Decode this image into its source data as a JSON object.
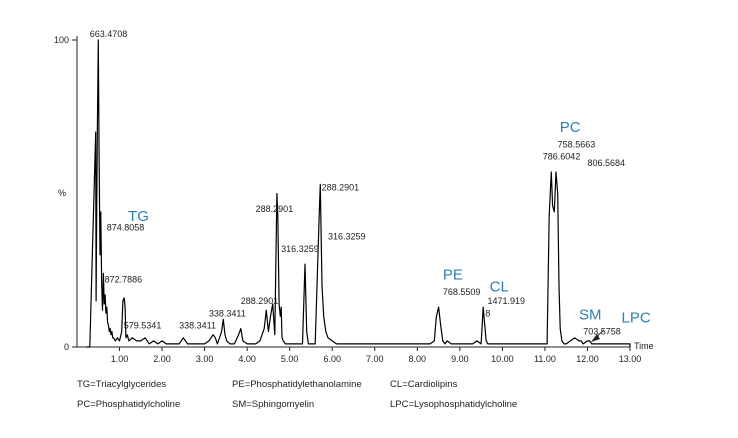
{
  "chart_data": {
    "type": "line",
    "xlabel": "Time",
    "ylabel": "%",
    "xlim": [
      0,
      13.0
    ],
    "ylim": [
      0,
      100
    ],
    "x_ticks": [
      "1.00",
      "2.00",
      "3.00",
      "4.00",
      "5.00",
      "6.00",
      "7.00",
      "8.00",
      "9.00",
      "10.00",
      "11.00",
      "12.00",
      "13.00"
    ],
    "y_ticks": [
      "0",
      "100"
    ],
    "series": [
      {
        "x": [
          0.3,
          0.44,
          0.45,
          0.46,
          0.48,
          0.5,
          0.52,
          0.54,
          0.56,
          0.58,
          0.6,
          0.62,
          0.64,
          0.66,
          0.68,
          0.7,
          0.72,
          0.74,
          0.76,
          0.78,
          0.8,
          0.82,
          0.84,
          0.86,
          0.9,
          0.95,
          1.0,
          1.05,
          1.08,
          1.11,
          1.13,
          1.15,
          1.18,
          1.22,
          1.3,
          1.4,
          1.5,
          1.6,
          1.7,
          1.8,
          1.9,
          2.0,
          2.1,
          2.2,
          2.3,
          2.4,
          2.5,
          2.6,
          2.7,
          2.8,
          2.9,
          3.0,
          3.1,
          3.2,
          3.25,
          3.3,
          3.4,
          3.44,
          3.48,
          3.52,
          3.6,
          3.7,
          3.8,
          3.85,
          3.9,
          4.0,
          4.1,
          4.2,
          4.3,
          4.4,
          4.45,
          4.5,
          4.55,
          4.6,
          4.65,
          4.7,
          4.72,
          4.75,
          4.78,
          4.8,
          4.82,
          4.85,
          4.9,
          5.0,
          5.1,
          5.2,
          5.3,
          5.36,
          5.4,
          5.44,
          5.5,
          5.6,
          5.7,
          5.72,
          5.76,
          5.8,
          5.85,
          5.9,
          6.0,
          6.1,
          6.3,
          6.6,
          7.0,
          7.4,
          7.8,
          8.1,
          8.3,
          8.4,
          8.45,
          8.5,
          8.55,
          8.6,
          8.65,
          8.7,
          8.8,
          8.9,
          9.0,
          9.1,
          9.2,
          9.3,
          9.4,
          9.5,
          9.55,
          9.58,
          9.62,
          9.66,
          9.7,
          9.8,
          10.0,
          10.3,
          10.6,
          10.9,
          11.05,
          11.1,
          11.15,
          11.18,
          11.22,
          11.26,
          11.3,
          11.33,
          11.36,
          11.4,
          11.45,
          11.5,
          11.6,
          11.7,
          11.8,
          11.85,
          11.9,
          12.0,
          12.05,
          12.1,
          12.2,
          12.4,
          12.6,
          12.8,
          13.0
        ],
        "y": [
          0,
          70,
          15,
          40,
          72,
          100,
          62,
          30,
          44,
          20,
          12,
          24,
          14,
          17,
          11,
          13,
          8,
          7,
          5,
          6,
          4,
          5,
          3,
          3,
          2,
          3,
          2,
          5,
          15,
          16,
          13,
          3,
          4,
          2,
          3,
          2,
          2,
          3,
          1,
          2,
          1,
          2,
          1,
          1,
          1,
          1,
          3,
          1,
          1,
          1,
          1,
          1,
          2,
          4,
          3,
          1,
          5,
          9,
          4,
          2,
          1,
          1,
          4,
          6,
          2,
          1,
          1,
          1,
          2,
          6,
          12,
          5,
          10,
          14,
          4,
          50,
          43,
          14,
          10,
          13,
          3,
          2,
          1,
          1,
          1,
          1,
          1,
          27,
          5,
          1,
          1,
          1,
          46,
          53,
          20,
          10,
          5,
          3,
          2,
          1,
          1,
          1,
          1,
          1,
          1,
          1,
          1,
          2,
          10,
          13,
          7,
          2,
          1,
          2,
          1,
          1,
          1,
          1,
          1,
          1,
          2,
          1,
          13,
          8,
          2,
          1,
          1,
          1,
          1,
          1,
          1,
          1,
          1,
          43,
          57,
          46,
          44,
          57,
          50,
          20,
          6,
          2,
          1,
          1,
          2,
          3,
          2,
          2,
          1,
          2,
          2,
          1,
          1,
          1,
          1,
          1,
          1
        ]
      }
    ],
    "peak_labels": [
      {
        "text": "663.4708",
        "x": 0.3,
        "y": 101
      },
      {
        "text": "874.8058",
        "x": 0.7,
        "y": 38
      },
      {
        "text": "872.7886",
        "x": 0.65,
        "y": 21
      },
      {
        "text": "579.5341",
        "x": 1.1,
        "y": 6
      },
      {
        "text": "338.3411",
        "x": 2.4,
        "y": 6
      },
      {
        "text": "338.3411",
        "x": 3.1,
        "y": 10
      },
      {
        "text": "288.2901",
        "x": 3.85,
        "y": 14
      },
      {
        "text": "288.2901",
        "x": 4.2,
        "y": 44
      },
      {
        "text": "316.3259",
        "x": 4.8,
        "y": 31
      },
      {
        "text": "288.2901",
        "x": 5.75,
        "y": 51
      },
      {
        "text": "316.3259",
        "x": 5.9,
        "y": 35
      },
      {
        "text": "768.5509",
        "x": 8.6,
        "y": 17
      },
      {
        "text": "1471.919",
        "x": 9.65,
        "y": 14
      },
      {
        "text": "8",
        "x": 9.6,
        "y": 10
      },
      {
        "text": "758.5663",
        "x": 11.3,
        "y": 65
      },
      {
        "text": "786.6042",
        "x": 10.95,
        "y": 61
      },
      {
        "text": "806.5684",
        "x": 12.0,
        "y": 59
      },
      {
        "text": "703.5758",
        "x": 11.9,
        "y": 4
      }
    ],
    "class_labels": [
      {
        "text": "TG",
        "x": 1.2,
        "y": 41
      },
      {
        "text": "PE",
        "x": 8.6,
        "y": 22
      },
      {
        "text": "CL",
        "x": 9.7,
        "y": 18
      },
      {
        "text": "PC",
        "x": 11.35,
        "y": 70
      },
      {
        "text": "SM",
        "x": 11.8,
        "y": 9
      },
      {
        "text": "LPC",
        "x": 12.8,
        "y": 8
      }
    ],
    "annotations": [
      "arrow pointing from LPC label to baseline near 12.1"
    ],
    "grid": false,
    "line_color": "#000000",
    "class_label_color": "#2a7fb8"
  },
  "legend": {
    "row1": [
      "TG=Triacylglycerides",
      "PE=Phosphatidylethanolamine",
      "CL=Cardiolipins"
    ],
    "row2": [
      "PC=Phosphatidylcholine",
      "SM=Sphingomyelin",
      "LPC=Lysophosphatidylcholine"
    ]
  }
}
